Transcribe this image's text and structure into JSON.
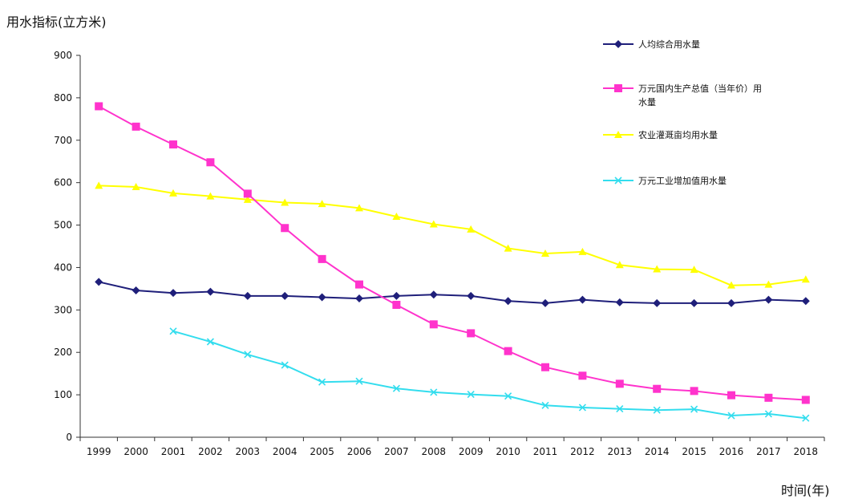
{
  "chart_data": {
    "type": "line",
    "ylabel": "用水指标(立方米)",
    "xlabel": "时间(年)",
    "ylim": [
      0,
      900
    ],
    "yticks": [
      0,
      100,
      200,
      300,
      400,
      500,
      600,
      700,
      800,
      900
    ],
    "categories": [
      "1999",
      "2000",
      "2001",
      "2002",
      "2003",
      "2004",
      "2005",
      "2006",
      "2007",
      "2008",
      "2009",
      "2010",
      "2011",
      "2012",
      "2013",
      "2014",
      "2015",
      "2016",
      "2017",
      "2018"
    ],
    "grid": false,
    "legend_position": "top-right",
    "series": [
      {
        "name": "人均综合用水量",
        "color": "#1f1f7a",
        "marker": "diamond",
        "values": [
          366,
          346,
          340,
          343,
          333,
          333,
          330,
          327,
          333,
          336,
          333,
          321,
          316,
          324,
          318,
          316,
          316,
          316,
          324,
          321
        ]
      },
      {
        "name": "万元国内生产总值（当年价）用水量",
        "name_lines": [
          "万元国内生产总值（当年价）用",
          "水量"
        ],
        "color": "#ff33cc",
        "marker": "square",
        "values": [
          780,
          732,
          690,
          648,
          574,
          493,
          420,
          360,
          312,
          266,
          245,
          203,
          165,
          145,
          126,
          114,
          109,
          99,
          93,
          88
        ]
      },
      {
        "name": "农业灌溉亩均用水量",
        "color": "#ffff00",
        "marker": "triangle",
        "values": [
          593,
          590,
          575,
          568,
          560,
          553,
          550,
          540,
          520,
          502,
          490,
          445,
          433,
          437,
          406,
          396,
          395,
          358,
          360,
          372
        ]
      },
      {
        "name": "万元工业增加值用水量",
        "color": "#33ddee",
        "marker": "x",
        "values": [
          null,
          null,
          250,
          225,
          195,
          170,
          130,
          132,
          115,
          106,
          101,
          97,
          75,
          70,
          67,
          64,
          66,
          51,
          55,
          45
        ]
      }
    ]
  }
}
